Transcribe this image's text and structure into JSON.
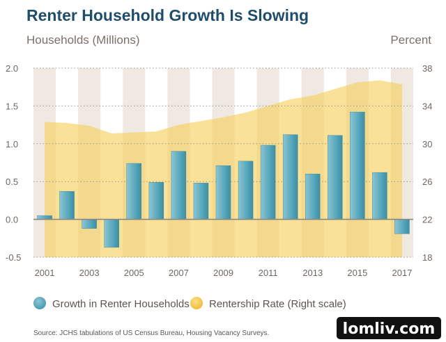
{
  "chart_data": {
    "type": "bar",
    "title": "Renter Household Growth Is Slowing",
    "ylabel_left": "Households (Millions)",
    "ylabel_right": "Percent",
    "x": [
      2001,
      2002,
      2003,
      2004,
      2005,
      2006,
      2007,
      2008,
      2009,
      2010,
      2011,
      2012,
      2013,
      2014,
      2015,
      2016,
      2017
    ],
    "x_tick_labels": [
      "2001",
      "2003",
      "2005",
      "2007",
      "2009",
      "2011",
      "2013",
      "2015",
      "2017"
    ],
    "y_left_ticks": [
      "2.0",
      "1.5",
      "1.0",
      "0.5",
      "0.0",
      "-0.5"
    ],
    "y_right_ticks": [
      "38",
      "34",
      "30",
      "26",
      "22",
      "18"
    ],
    "ylim_left": [
      -0.5,
      2.0
    ],
    "ylim_right": [
      18,
      38
    ],
    "grid": "dotted horizontal",
    "series": [
      {
        "name": "Growth in Renter Households",
        "kind": "bar",
        "axis": "left",
        "color": "#5aa9bd",
        "values": [
          0.05,
          0.37,
          -0.12,
          -0.37,
          0.74,
          0.49,
          0.9,
          0.48,
          0.71,
          0.77,
          0.98,
          1.12,
          0.6,
          1.11,
          1.42,
          0.62,
          -0.19
        ]
      },
      {
        "name": "Rentership Rate (Right scale)",
        "kind": "area",
        "axis": "right",
        "color": "#f6cf58",
        "values": [
          32.3,
          32.2,
          31.9,
          31.1,
          31.2,
          31.3,
          32.0,
          32.4,
          32.8,
          33.3,
          34.0,
          34.7,
          35.1,
          35.8,
          36.5,
          36.7,
          36.3
        ]
      }
    ],
    "source": "Source: JCHS tabulations of US Census Bureau, Housing Vacancy Surveys."
  },
  "watermark": "lomliv.com",
  "colors": {
    "title": "#1f4d6b",
    "stripe": "#efe9e2",
    "axis_text": "#6f6862",
    "zero_line": "#8a8680",
    "area": "#f6cf58",
    "bar": "#5aa9bd",
    "bar_edge": "#3f8fa4"
  }
}
